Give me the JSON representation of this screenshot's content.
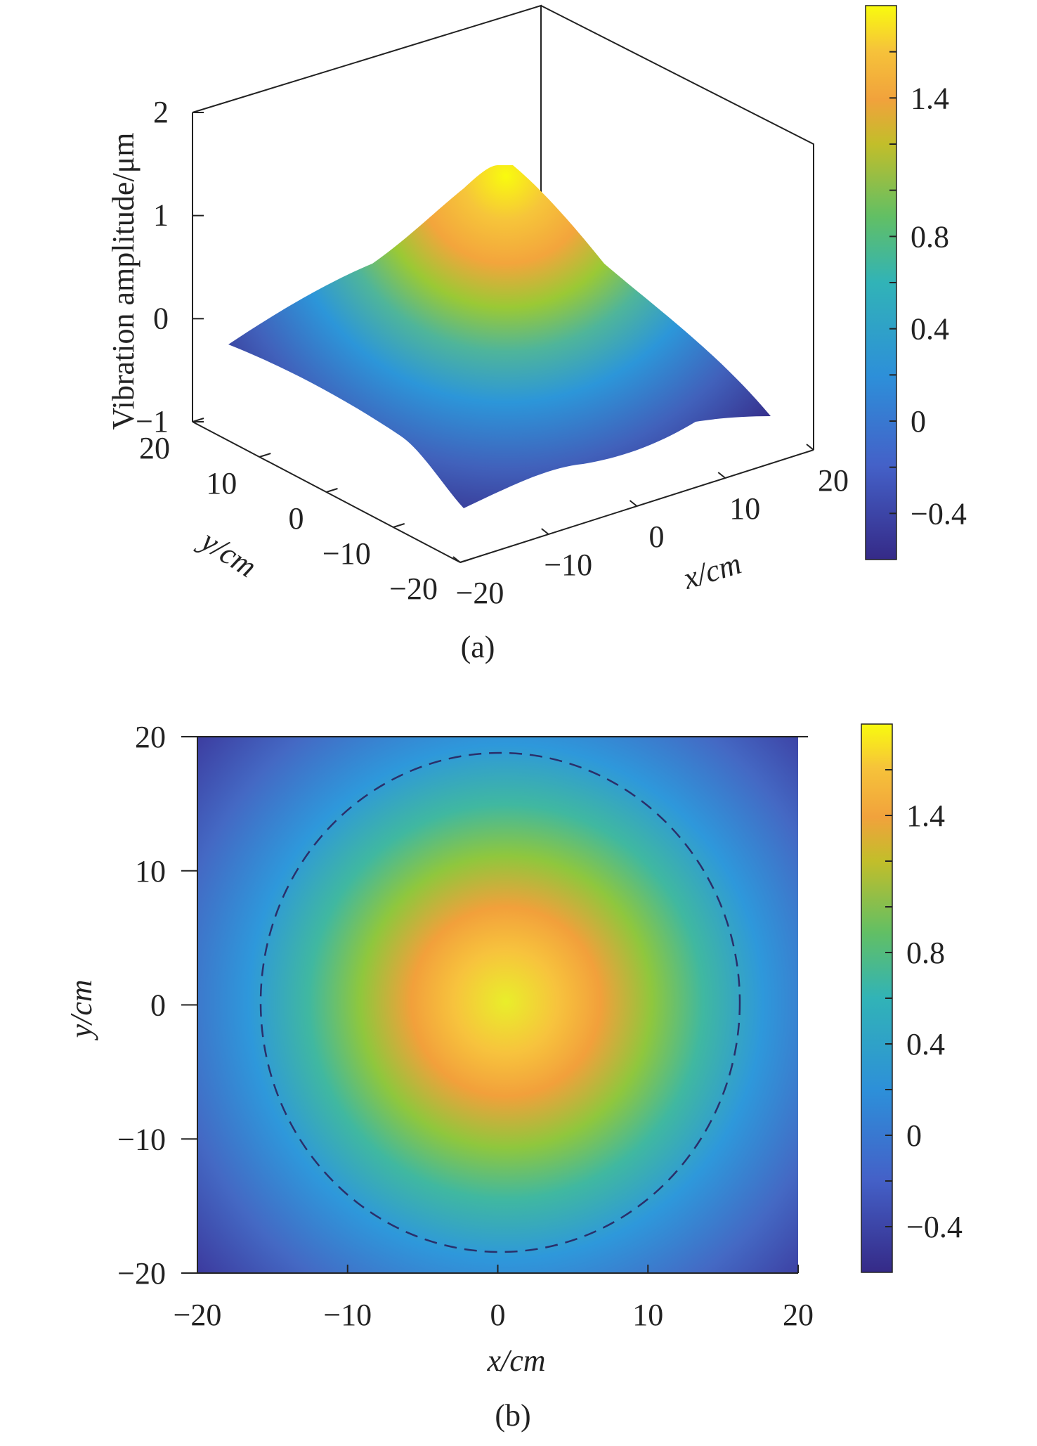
{
  "chart_data": [
    {
      "panel": "(a)",
      "type": "surface3d",
      "xlabel": "x/cm",
      "ylabel": "y/cm",
      "zlabel": "Vibration amplitude/μm",
      "x_ticks": [
        "−20",
        "−10",
        "0",
        "10",
        "20"
      ],
      "y_ticks": [
        "−20",
        "−10",
        "0",
        "10",
        "20"
      ],
      "z_ticks": [
        "−1",
        "0",
        "1",
        "2"
      ],
      "xlim": [
        -20,
        20
      ],
      "ylim": [
        -20,
        20
      ],
      "zlim": [
        -1,
        2
      ],
      "peak": {
        "x": 0,
        "y": 0,
        "z": 1.45
      },
      "corner_values": [
        {
          "x": -20,
          "y": -20,
          "z": -0.4
        },
        {
          "x": 20,
          "y": -20,
          "z": -0.4
        },
        {
          "x": -20,
          "y": 20,
          "z": -0.3
        },
        {
          "x": 20,
          "y": 20,
          "z": -0.45
        }
      ],
      "colorbar": {
        "ticks": [
          "1.4",
          "0.8",
          "0.4",
          "0",
          "−0.4"
        ],
        "tick_values": [
          1.4,
          0.8,
          0.4,
          0,
          -0.4
        ],
        "range": [
          -0.6,
          1.8
        ],
        "colormap": "parula"
      }
    },
    {
      "panel": "(b)",
      "type": "heatmap",
      "xlabel": "x/cm",
      "ylabel": "y/cm",
      "x_ticks": [
        "−20",
        "−10",
        "0",
        "10",
        "20"
      ],
      "y_ticks": [
        "−20",
        "−10",
        "0",
        "10",
        "20"
      ],
      "xlim": [
        -20,
        20
      ],
      "ylim": [
        -20,
        20
      ],
      "peak": {
        "x": 0,
        "y": 0,
        "value": 1.6
      },
      "dashed_circle": {
        "center": [
          0,
          1
        ],
        "radius": 16.5
      },
      "colorbar": {
        "ticks": [
          "1.4",
          "0.8",
          "0.4",
          "0",
          "−0.4"
        ],
        "tick_values": [
          1.4,
          0.8,
          0.4,
          0,
          -0.4
        ],
        "range": [
          -0.6,
          1.8
        ],
        "colormap": "parula"
      }
    }
  ],
  "captions": {
    "a": "(a)",
    "b": "(b)"
  }
}
